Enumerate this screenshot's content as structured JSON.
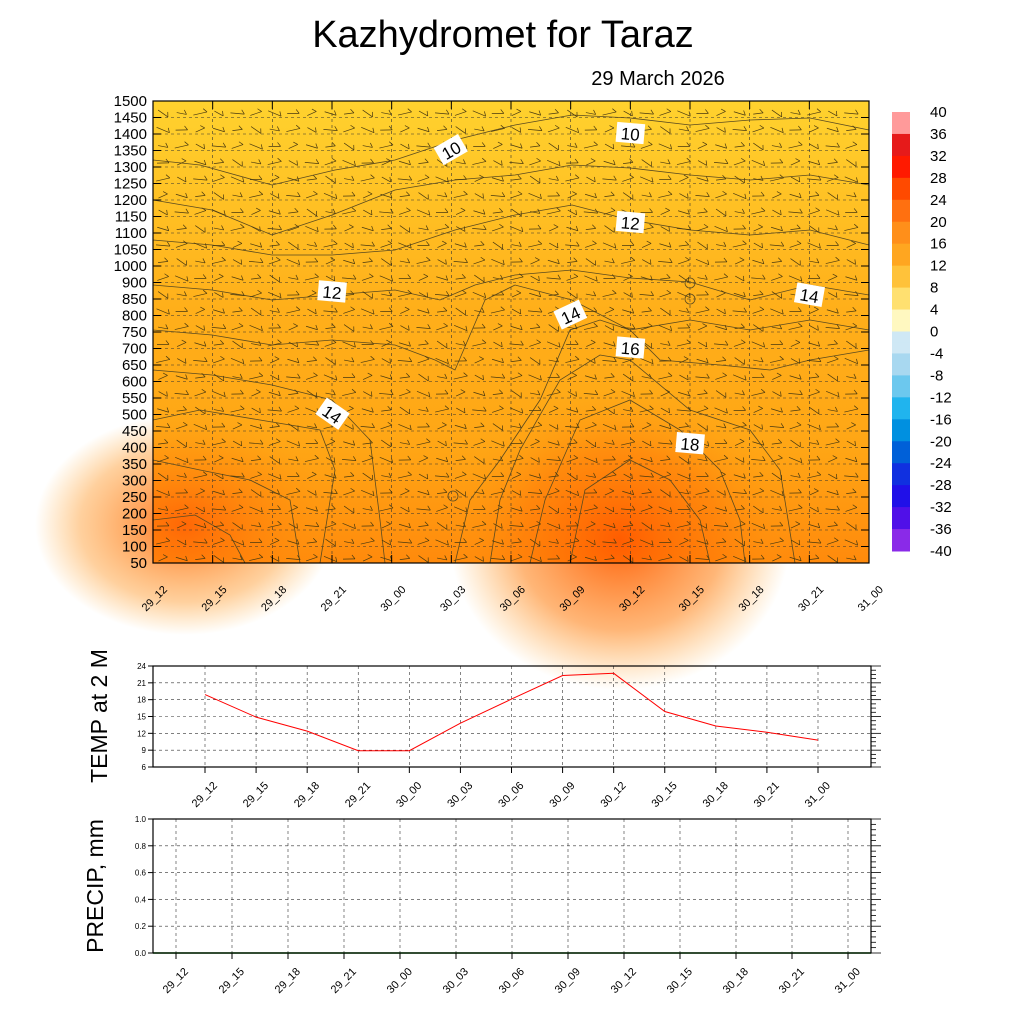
{
  "title": "Kazhydromet  for Taraz",
  "date": "29 March 2026",
  "time_labels": [
    "29_12",
    "29_15",
    "29_18",
    "29_21",
    "30_00",
    "30_03",
    "30_06",
    "30_09",
    "30_12",
    "30_15",
    "30_18",
    "30_21",
    "31_00"
  ],
  "colors": {
    "temp_line": "#ff0000",
    "precip_line": "#008000",
    "field_low": "#ffd22e",
    "field_mid": "#ffa615",
    "field_high": "#ff6a05"
  },
  "chart_data": [
    {
      "type": "heatmap",
      "title": "Kazhydromet  for Taraz",
      "subtitle": "29 March 2026",
      "x": [
        "29_12",
        "29_15",
        "29_18",
        "29_21",
        "30_00",
        "30_03",
        "30_06",
        "30_09",
        "30_12",
        "30_15",
        "30_18",
        "30_21",
        "31_00"
      ],
      "y_ticks": [
        50,
        100,
        150,
        200,
        250,
        300,
        350,
        400,
        450,
        500,
        550,
        600,
        650,
        700,
        750,
        800,
        850,
        900,
        1000,
        1050,
        1100,
        1150,
        1200,
        1250,
        1300,
        1350,
        1400,
        1450,
        1500
      ],
      "ylim": [
        50,
        1500
      ],
      "colorbar": {
        "labels": [
          "40",
          "36",
          "32",
          "28",
          "24",
          "20",
          "16",
          "12",
          "8",
          "4",
          "0",
          "-4",
          "-8",
          "-12",
          "-16",
          "-20",
          "-24",
          "-28",
          "-32",
          "-36",
          "-40"
        ],
        "range": [
          -40,
          40
        ]
      },
      "contour_labels": [
        {
          "text": "10",
          "time": "30_03",
          "level": 1350
        },
        {
          "text": "10",
          "time": "30_12",
          "level": 1400
        },
        {
          "text": "12",
          "time": "30_12",
          "level": 1130
        },
        {
          "text": "12",
          "time": "29_21",
          "level": 870
        },
        {
          "text": "14",
          "time": "30_21",
          "level": 860
        },
        {
          "text": "14",
          "time": "30_09",
          "level": 800
        },
        {
          "text": "16",
          "time": "30_12",
          "level": 700
        },
        {
          "text": "14",
          "time": "29_21",
          "level": 500
        },
        {
          "text": "18",
          "time": "30_15",
          "level": 410
        }
      ],
      "grid": true
    },
    {
      "type": "line",
      "ylabel": "TEMP at 2 M",
      "x": [
        "29_12",
        "29_15",
        "29_18",
        "29_21",
        "30_00",
        "30_03",
        "30_06",
        "30_09",
        "30_12",
        "30_15",
        "30_18",
        "30_21",
        "31_00"
      ],
      "series": [
        {
          "name": "TEMP at 2 M",
          "values": [
            18.9,
            14.9,
            12.4,
            8.9,
            8.9,
            13.8,
            18.1,
            22.3,
            22.7,
            15.9,
            13.3,
            12.2,
            10.8
          ]
        }
      ],
      "yticks": [
        "6",
        "9",
        "12",
        "15",
        "18",
        "21",
        "24"
      ],
      "ylim": [
        6,
        24
      ],
      "grid": true
    },
    {
      "type": "line",
      "ylabel": "PRECIP, mm",
      "x": [
        "29_12",
        "29_15",
        "29_18",
        "29_21",
        "30_00",
        "30_03",
        "30_06",
        "30_09",
        "30_12",
        "30_15",
        "30_18",
        "30_21",
        "31_00"
      ],
      "series": [
        {
          "name": "PRECIP",
          "values": [
            0,
            0,
            0,
            0,
            0,
            0,
            0,
            0,
            0,
            0,
            0,
            0,
            0
          ]
        }
      ],
      "yticks": [
        "0.0",
        "0.2",
        "0.4",
        "0.6",
        "0.8",
        "1.0"
      ],
      "ylim": [
        0,
        1
      ],
      "grid": true
    }
  ]
}
